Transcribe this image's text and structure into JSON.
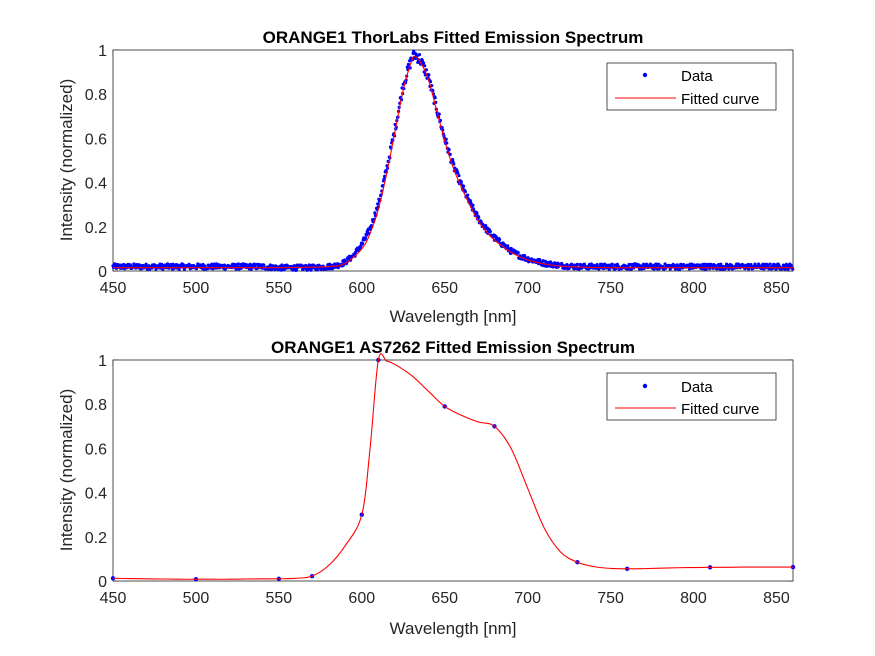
{
  "colors": {
    "data": "#0000ff",
    "fit": "#ff0000",
    "axis": "#262626",
    "background": "#ffffff"
  },
  "chart_data": [
    {
      "type": "scatter",
      "title": "ORANGE1 ThorLabs Fitted Emission Spectrum",
      "xlabel": "Wavelength [nm]",
      "ylabel": "Intensity (normalized)",
      "xlim": [
        450,
        860
      ],
      "ylim": [
        0,
        1
      ],
      "xticks": [
        450,
        500,
        550,
        600,
        650,
        700,
        750,
        800,
        850
      ],
      "yticks": [
        0,
        0.2,
        0.4,
        0.6,
        0.8,
        1
      ],
      "legend": {
        "placement": "top-right",
        "entries": [
          "Data",
          "Fitted curve"
        ]
      },
      "series": [
        {
          "name": "Data",
          "mode": "markers",
          "noise": 0.012,
          "x": [
            450,
            460,
            470,
            480,
            490,
            500,
            510,
            520,
            530,
            540,
            550,
            560,
            570,
            580,
            585,
            590,
            595,
            600,
            605,
            610,
            615,
            620,
            625,
            630,
            632,
            635,
            640,
            645,
            650,
            655,
            660,
            665,
            670,
            675,
            680,
            685,
            690,
            695,
            700,
            710,
            720,
            730,
            740,
            750,
            760,
            770,
            780,
            790,
            800,
            810,
            820,
            830,
            840,
            850,
            860
          ],
          "y": [
            0.02,
            0.02,
            0.02,
            0.02,
            0.02,
            0.02,
            0.02,
            0.02,
            0.02,
            0.02,
            0.015,
            0.015,
            0.015,
            0.02,
            0.025,
            0.04,
            0.07,
            0.12,
            0.19,
            0.3,
            0.46,
            0.64,
            0.84,
            0.96,
            0.98,
            0.96,
            0.88,
            0.74,
            0.6,
            0.48,
            0.39,
            0.31,
            0.24,
            0.19,
            0.15,
            0.12,
            0.09,
            0.07,
            0.055,
            0.035,
            0.025,
            0.02,
            0.02,
            0.02,
            0.02,
            0.02,
            0.02,
            0.02,
            0.02,
            0.02,
            0.02,
            0.02,
            0.02,
            0.02,
            0.02
          ]
        },
        {
          "name": "Fitted curve",
          "mode": "line",
          "x": [
            450,
            500,
            550,
            580,
            590,
            600,
            605,
            610,
            615,
            620,
            625,
            630,
            632,
            635,
            640,
            645,
            650,
            655,
            660,
            665,
            670,
            675,
            680,
            690,
            700,
            710,
            720,
            740,
            760,
            800,
            860
          ],
          "y": [
            0.015,
            0.015,
            0.015,
            0.02,
            0.035,
            0.1,
            0.17,
            0.28,
            0.44,
            0.63,
            0.82,
            0.95,
            0.97,
            0.95,
            0.87,
            0.73,
            0.59,
            0.47,
            0.38,
            0.3,
            0.23,
            0.18,
            0.14,
            0.085,
            0.05,
            0.032,
            0.022,
            0.016,
            0.015,
            0.015,
            0.015
          ]
        }
      ]
    },
    {
      "type": "scatter",
      "title": "ORANGE1 AS7262 Fitted Emission Spectrum",
      "xlabel": "Wavelength [nm]",
      "ylabel": "Intensity (normalized)",
      "xlim": [
        450,
        860
      ],
      "ylim": [
        0,
        1
      ],
      "xticks": [
        450,
        500,
        550,
        600,
        650,
        700,
        750,
        800,
        850
      ],
      "yticks": [
        0,
        0.2,
        0.4,
        0.6,
        0.8,
        1
      ],
      "legend": {
        "placement": "top-right",
        "entries": [
          "Data",
          "Fitted curve"
        ]
      },
      "series": [
        {
          "name": "Data",
          "mode": "markers",
          "x": [
            450,
            500,
            550,
            570,
            600,
            610,
            650,
            680,
            730,
            760,
            810,
            860
          ],
          "y": [
            0.012,
            0.008,
            0.01,
            0.022,
            0.3,
            1.0,
            0.79,
            0.7,
            0.085,
            0.055,
            0.062,
            0.063
          ]
        },
        {
          "name": "Fitted curve",
          "mode": "line",
          "x": [
            450,
            460,
            470,
            480,
            490,
            500,
            510,
            520,
            530,
            540,
            550,
            560,
            570,
            580,
            590,
            600,
            605,
            610,
            615,
            620,
            630,
            640,
            650,
            660,
            670,
            680,
            690,
            700,
            710,
            720,
            730,
            740,
            750,
            760,
            770,
            780,
            790,
            800,
            810,
            820,
            830,
            840,
            850,
            860
          ],
          "y": [
            0.012,
            0.011,
            0.01,
            0.009,
            0.008,
            0.008,
            0.008,
            0.008,
            0.009,
            0.01,
            0.01,
            0.012,
            0.022,
            0.07,
            0.16,
            0.3,
            0.6,
            1.0,
            0.995,
            0.98,
            0.93,
            0.86,
            0.79,
            0.75,
            0.72,
            0.7,
            0.6,
            0.42,
            0.24,
            0.13,
            0.085,
            0.065,
            0.057,
            0.055,
            0.056,
            0.058,
            0.06,
            0.061,
            0.062,
            0.062,
            0.063,
            0.063,
            0.063,
            0.063
          ]
        }
      ]
    }
  ]
}
